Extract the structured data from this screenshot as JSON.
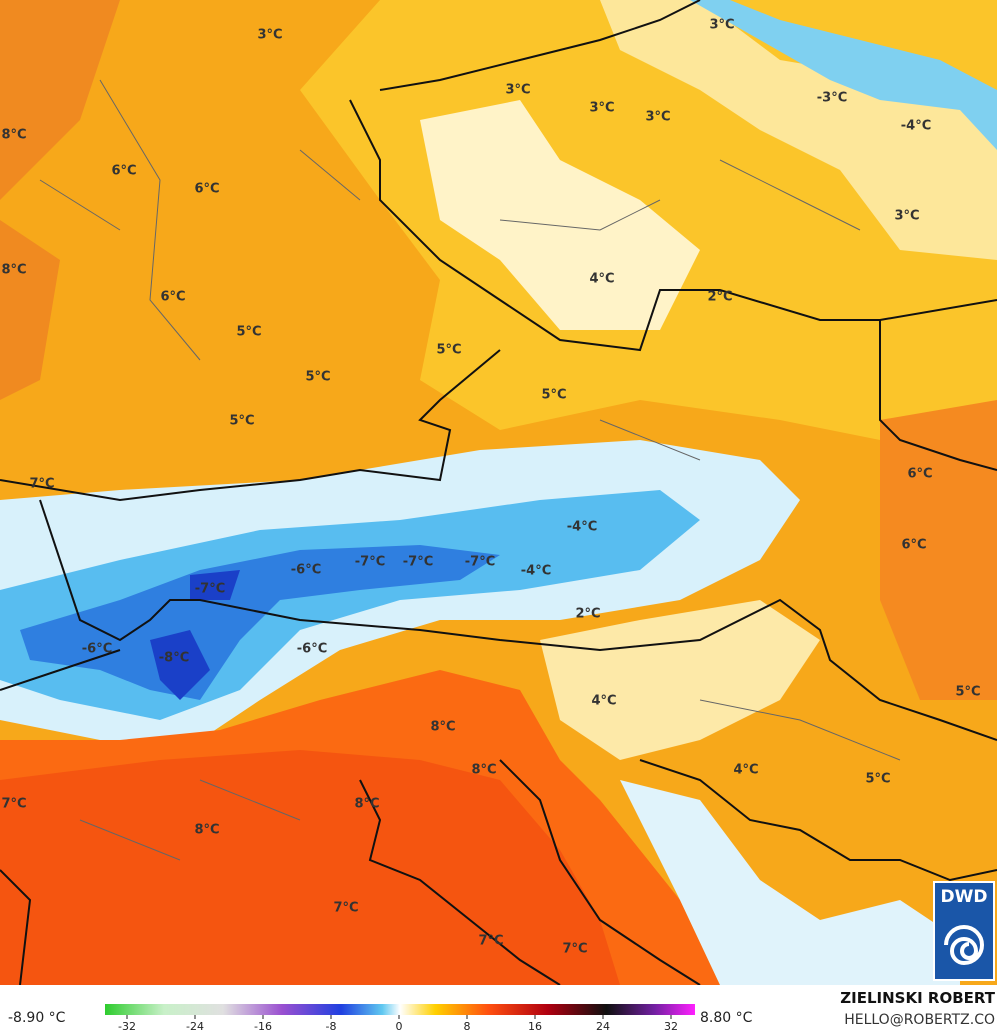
{
  "map_labels": [
    "3°C",
    "3°C",
    "3°C",
    "3°C",
    "3°C",
    "-3°C",
    "-4°C",
    "8°C",
    "6°C",
    "6°C",
    "3°C",
    "8°C",
    "4°C",
    "6°C",
    "2°C",
    "5°C",
    "5°C",
    "5°C",
    "5°C",
    "5°C",
    "6°C",
    "7°C",
    "-4°C",
    "6°C",
    "-6°C",
    "-7°C",
    "-7°C",
    "-7°C",
    "-4°C",
    "-7°C",
    "2°C",
    "-6°C",
    "-8°C",
    "-6°C",
    "5°C",
    "4°C",
    "8°C",
    "8°C",
    "4°C",
    "5°C",
    "7°C",
    "8°C",
    "8°C",
    "7°C",
    "7°C",
    "7°C"
  ],
  "legend": {
    "min_label": "-8.90 °C",
    "max_label": "8.80 °C",
    "ticks": [
      -32,
      -24,
      -16,
      -8,
      0,
      8,
      16,
      24,
      32
    ]
  },
  "credit": {
    "author": "ZIELINSKI ROBERT",
    "email": "HELLO@ROBERTZ.CO"
  },
  "logo": "DWD"
}
